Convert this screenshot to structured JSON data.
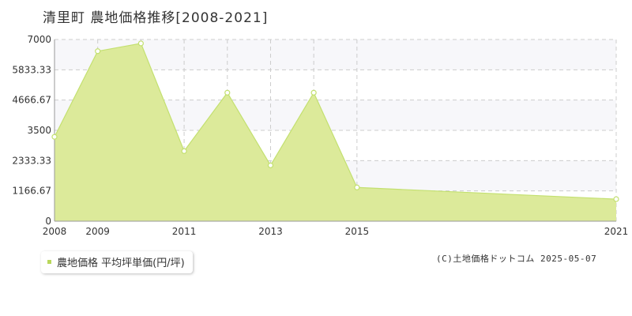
{
  "header": {
    "title": "清里町 農地価格推移[2008-2021]"
  },
  "legend": {
    "label": "農地価格 平均坪単価(円/坪)"
  },
  "footer": {
    "copyright": "(C)土地価格ドットコム 2025-05-07"
  },
  "colors": {
    "fill": "#dcea9a",
    "line": "#c3e070",
    "band": "#f7f7fa",
    "grid": "#cccccc",
    "legend_swatch": "#b9d75b"
  },
  "chart_data": {
    "type": "area",
    "title": "清里町 農地価格推移[2008-2021]",
    "x": [
      2008,
      2009,
      2010,
      2011,
      2012,
      2013,
      2014,
      2015,
      2021
    ],
    "series": [
      {
        "name": "農地価格 平均坪単価(円/坪)",
        "values": [
          3250,
          6550,
          6850,
          2700,
          4950,
          2150,
          4950,
          1300,
          850
        ]
      }
    ],
    "xlim": [
      2008,
      2021
    ],
    "ylim": [
      0,
      7000
    ],
    "x_tick_labels": [
      "2008",
      "2009",
      "2011",
      "2013",
      "2015",
      "2021"
    ],
    "x_tick_values": [
      2008,
      2009,
      2011,
      2013,
      2015,
      2021
    ],
    "y_tick_labels": [
      "0",
      "1166.67",
      "2333.33",
      "3500",
      "4666.67",
      "5833.33",
      "7000"
    ],
    "y_tick_values": [
      0,
      1166.67,
      2333.33,
      3500,
      4666.67,
      5833.33,
      7000
    ],
    "grid": true
  }
}
